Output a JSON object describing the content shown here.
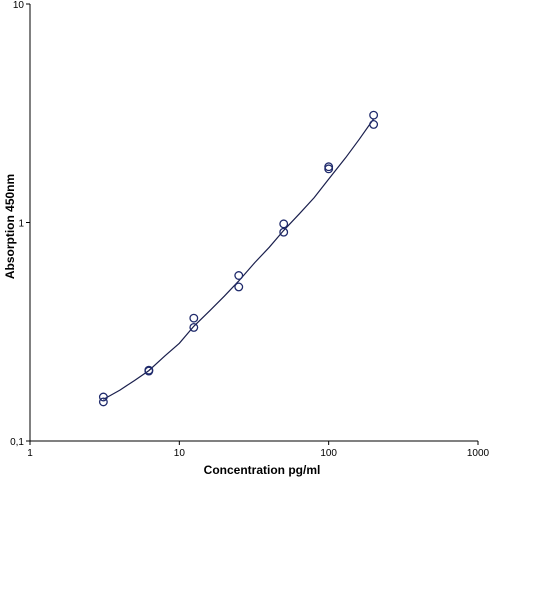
{
  "chart_data": {
    "type": "scatter",
    "title": "",
    "xlabel": "Concentration pg/ml",
    "ylabel": "Absorption 450nm",
    "xscale": "log",
    "yscale": "log",
    "xlim": [
      1,
      1000
    ],
    "ylim": [
      0.1,
      10
    ],
    "x_ticks": [
      1,
      10,
      100,
      1000
    ],
    "x_tick_labels": [
      "1",
      "10",
      "100",
      "1000"
    ],
    "y_ticks": [
      0.1,
      1,
      10
    ],
    "y_tick_labels": [
      "0,1",
      "1",
      "10"
    ],
    "grid": false,
    "legend": "none",
    "colors": {
      "points": "#1f2a6b",
      "curve": "#1a1f4d",
      "axes": "#000000"
    },
    "series": [
      {
        "type": "scatter",
        "marker": "open-circle",
        "x": [
          3.1,
          3.1,
          6.25,
          6.25,
          12.5,
          12.5,
          25,
          25,
          50,
          50,
          100,
          100,
          200,
          200
        ],
        "y": [
          0.159,
          0.151,
          0.209,
          0.211,
          0.365,
          0.331,
          0.572,
          0.507,
          0.986,
          0.903,
          1.8,
          1.76,
          3.1,
          2.81
        ]
      },
      {
        "type": "line",
        "x": [
          3.1,
          4,
          5,
          6.25,
          8,
          10,
          12.5,
          16,
          20,
          25,
          32,
          40,
          50,
          64,
          80,
          100,
          130,
          160,
          200
        ],
        "y": [
          0.155,
          0.171,
          0.189,
          0.21,
          0.245,
          0.28,
          0.335,
          0.395,
          0.46,
          0.54,
          0.655,
          0.77,
          0.92,
          1.1,
          1.3,
          1.58,
          1.98,
          2.4,
          2.98
        ]
      }
    ]
  }
}
